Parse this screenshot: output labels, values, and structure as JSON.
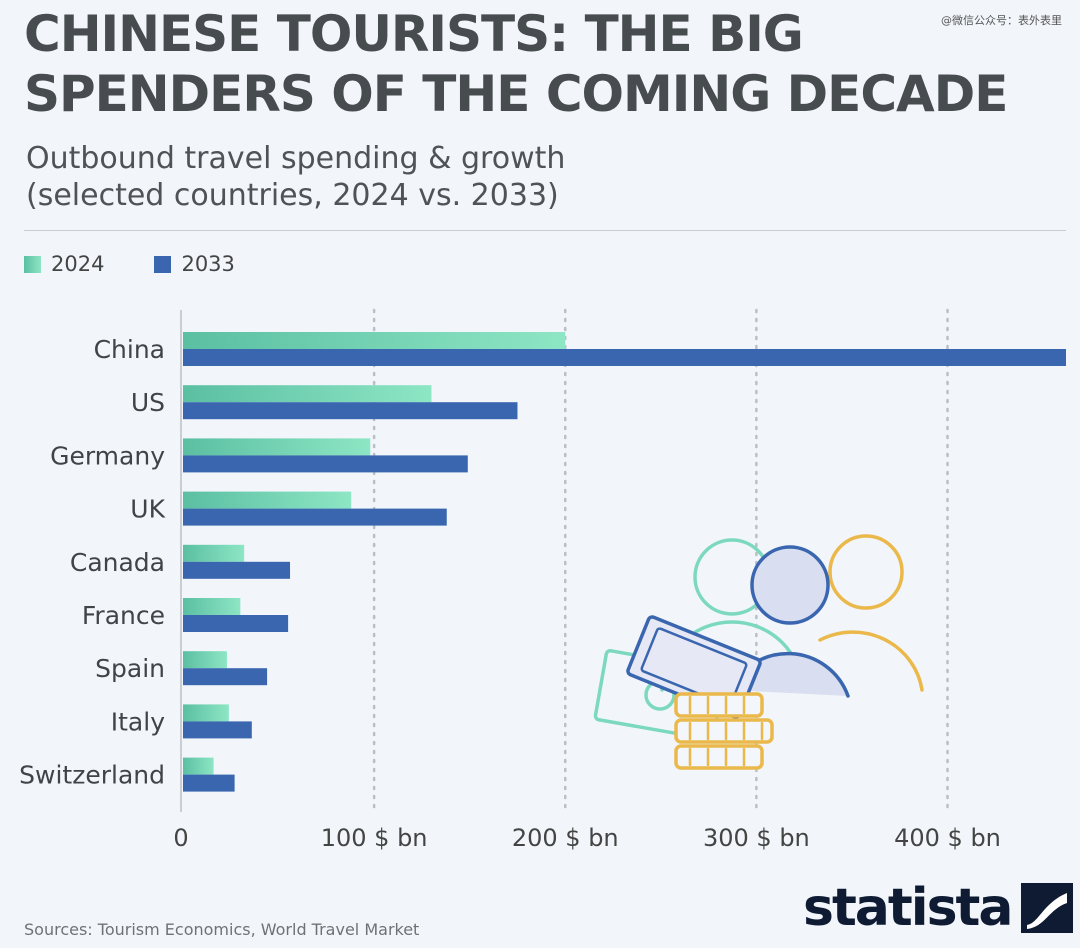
{
  "watermark": "@微信公众号：表外表里",
  "title": "CHINESE TOURISTS: THE BIG SPENDERS OF THE COMING DECADE",
  "subtitle_line1": "Outbound travel spending & growth",
  "subtitle_line2": "(selected countries, 2024 vs. 2033)",
  "source": "Sources: Tourism Economics, World Travel Market",
  "logo_text": "statista",
  "chart_data": {
    "type": "bar",
    "orientation": "horizontal",
    "title": "CHINESE TOURISTS: THE BIG SPENDERS OF THE COMING DECADE",
    "subtitle": "Outbound travel spending & growth (selected countries, 2024 vs. 2033)",
    "categories": [
      "China",
      "US",
      "Germany",
      "UK",
      "Canada",
      "France",
      "Spain",
      "Italy",
      "Switzerland"
    ],
    "series": [
      {
        "name": "2024",
        "color": "#6fd6b4",
        "values": [
          200,
          130,
          98,
          88,
          32,
          30,
          23,
          24,
          16
        ]
      },
      {
        "name": "2033",
        "color": "#3a66b0",
        "values": [
          462,
          175,
          149,
          138,
          56,
          55,
          44,
          36,
          27
        ]
      }
    ],
    "xlim": [
      0,
      462
    ],
    "xticks": [
      0,
      100,
      200,
      300,
      400
    ],
    "xtick_labels": [
      "0",
      "100 $ bn",
      "200 $ bn",
      "300 $ bn",
      "400 $ bn"
    ],
    "grid": true,
    "legend": "top-left"
  }
}
